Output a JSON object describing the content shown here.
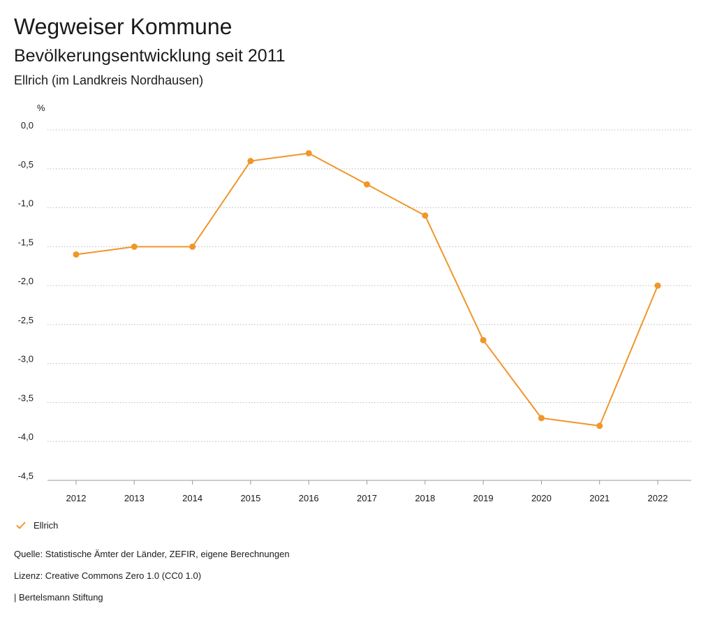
{
  "header": {
    "title": "Wegweiser Kommune",
    "subtitle": "Bevölkerungsentwicklung seit 2011",
    "region": "Ellrich (im Landkreis Nordhausen)"
  },
  "chart_data": {
    "type": "line",
    "title": "Bevölkerungsentwicklung seit 2011",
    "ylabel": "%",
    "xlabel": "",
    "ylim": [
      -4.5,
      0.0
    ],
    "yticks": [
      0.0,
      -0.5,
      -1.0,
      -1.5,
      -2.0,
      -2.5,
      -3.0,
      -3.5,
      -4.0,
      -4.5
    ],
    "ytick_labels": [
      "0,0",
      "-0,5",
      "-1,0",
      "-1,5",
      "-2,0",
      "-2,5",
      "-3,0",
      "-3,5",
      "-4,0",
      "-4,5"
    ],
    "categories": [
      "2012",
      "2013",
      "2014",
      "2015",
      "2016",
      "2017",
      "2018",
      "2019",
      "2020",
      "2021",
      "2022"
    ],
    "series": [
      {
        "name": "Ellrich",
        "values": [
          -1.6,
          -1.5,
          -1.5,
          -0.4,
          -0.3,
          -0.7,
          -1.1,
          -2.7,
          -3.7,
          -3.8,
          -2.0
        ]
      }
    ],
    "grid": true,
    "legend": "bottom-left"
  },
  "colors": {
    "series": "#f0962a",
    "grid": "#bbbbbb",
    "axis": "#999999"
  },
  "legend": {
    "label": "Ellrich"
  },
  "footer": {
    "source": "Quelle: Statistische Ämter der Länder, ZEFIR, eigene Berechnungen",
    "license": "Lizenz: Creative Commons Zero 1.0 (CC0 1.0)",
    "publisher": "| Bertelsmann Stiftung"
  }
}
